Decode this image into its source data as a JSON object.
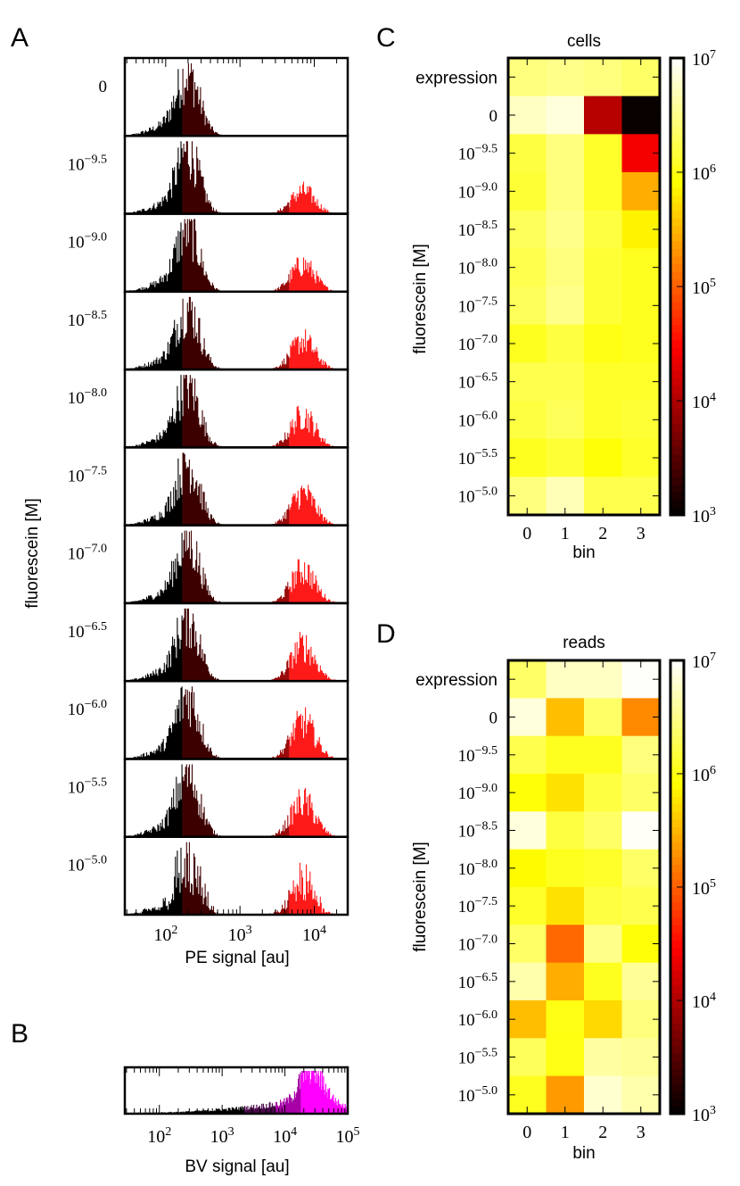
{
  "colors": {
    "pe_bins": [
      "#000000",
      "#3d0000",
      "#9a0a0a",
      "#ff1a1a"
    ],
    "bv_bins": [
      "#000000",
      "#4a0a4a",
      "#a600a6",
      "#ff00ff"
    ]
  },
  "panel_a": {
    "letter": "A",
    "ylabel": "fluorescein [M]",
    "xlabel": "PE signal [au]",
    "xticks": [
      "2",
      "3",
      "4"
    ],
    "tick_base": "10",
    "xlog_range": [
      1.45,
      4.45
    ],
    "bin_edges_log": [
      2.22,
      2.98,
      3.66
    ],
    "rows": [
      {
        "label": "0",
        "sup": "",
        "mode_high": 0.0
      },
      {
        "label": "10",
        "sup": "−9.5",
        "mode_high": 0.35
      },
      {
        "label": "10",
        "sup": "−9.0",
        "mode_high": 0.42
      },
      {
        "label": "10",
        "sup": "−8.5",
        "mode_high": 0.45
      },
      {
        "label": "10",
        "sup": "−8.0",
        "mode_high": 0.5
      },
      {
        "label": "10",
        "sup": "−7.5",
        "mode_high": 0.5
      },
      {
        "label": "10",
        "sup": "−7.0",
        "mode_high": 0.52
      },
      {
        "label": "10",
        "sup": "−6.5",
        "mode_high": 0.55
      },
      {
        "label": "10",
        "sup": "−6.0",
        "mode_high": 0.58
      },
      {
        "label": "10",
        "sup": "−5.5",
        "mode_high": 0.55
      },
      {
        "label": "10",
        "sup": "−5.0",
        "mode_high": 0.6
      }
    ]
  },
  "panel_b": {
    "letter": "B",
    "xlabel": "BV signal [au]",
    "xticks": [
      "2",
      "3",
      "4",
      "5"
    ],
    "tick_base": "10",
    "xlog_range": [
      1.45,
      5.0
    ],
    "bin_edges_log": [
      3.35,
      3.85,
      4.25
    ]
  },
  "chart_data": [
    {
      "type": "heatmap",
      "panel": "C",
      "title": "cells",
      "xlabel": "bin",
      "ylabel": "fluorescein [M]",
      "x_categories": [
        "0",
        "1",
        "2",
        "3"
      ],
      "y_categories": [
        "expression",
        "0",
        "10^-9.5",
        "10^-9.0",
        "10^-8.5",
        "10^-8.0",
        "10^-7.5",
        "10^-7.0",
        "10^-6.5",
        "10^-6.0",
        "10^-5.5",
        "10^-5.0"
      ],
      "y_labels": [
        {
          "base": "expression",
          "sup": ""
        },
        {
          "base": "0",
          "sup": ""
        },
        {
          "base": "10",
          "sup": "−9.5"
        },
        {
          "base": "10",
          "sup": "−9.0"
        },
        {
          "base": "10",
          "sup": "−8.5"
        },
        {
          "base": "10",
          "sup": "−8.0"
        },
        {
          "base": "10",
          "sup": "−7.5"
        },
        {
          "base": "10",
          "sup": "−7.0"
        },
        {
          "base": "10",
          "sup": "−6.5"
        },
        {
          "base": "10",
          "sup": "−6.0"
        },
        {
          "base": "10",
          "sup": "−5.5"
        },
        {
          "base": "10",
          "sup": "−5.0"
        }
      ],
      "log10_values": [
        [
          6.45,
          6.5,
          6.45,
          6.35
        ],
        [
          6.75,
          6.85,
          4.05,
          3.05
        ],
        [
          6.2,
          6.45,
          6.1,
          4.4
        ],
        [
          6.15,
          6.45,
          6.1,
          5.45
        ],
        [
          6.3,
          6.5,
          6.2,
          5.85
        ],
        [
          6.25,
          6.45,
          6.15,
          6.05
        ],
        [
          6.3,
          6.5,
          6.15,
          6.05
        ],
        [
          6.05,
          6.2,
          6.0,
          6.05
        ],
        [
          6.25,
          6.25,
          6.1,
          6.1
        ],
        [
          6.2,
          6.3,
          6.1,
          6.15
        ],
        [
          6.05,
          6.15,
          5.95,
          6.1
        ],
        [
          6.45,
          6.7,
          6.25,
          6.25
        ]
      ],
      "colorbar": {
        "scale": "log",
        "min": 1000,
        "max": 10000000,
        "tick_exponents": [
          "3",
          "4",
          "5",
          "6",
          "7"
        ],
        "tick_base": "10"
      }
    },
    {
      "type": "heatmap",
      "panel": "D",
      "title": "reads",
      "xlabel": "bin",
      "ylabel": "fluorescein [M]",
      "x_categories": [
        "0",
        "1",
        "2",
        "3"
      ],
      "y_categories": [
        "expression",
        "0",
        "10^-9.5",
        "10^-9.0",
        "10^-8.5",
        "10^-8.0",
        "10^-7.5",
        "10^-7.0",
        "10^-6.5",
        "10^-6.0",
        "10^-5.5",
        "10^-5.0"
      ],
      "y_labels": [
        {
          "base": "expression",
          "sup": ""
        },
        {
          "base": "0",
          "sup": ""
        },
        {
          "base": "10",
          "sup": "−9.5"
        },
        {
          "base": "10",
          "sup": "−9.0"
        },
        {
          "base": "10",
          "sup": "−8.5"
        },
        {
          "base": "10",
          "sup": "−8.0"
        },
        {
          "base": "10",
          "sup": "−7.5"
        },
        {
          "base": "10",
          "sup": "−7.0"
        },
        {
          "base": "10",
          "sup": "−6.5"
        },
        {
          "base": "10",
          "sup": "−6.0"
        },
        {
          "base": "10",
          "sup": "−5.5"
        },
        {
          "base": "10",
          "sup": "−5.0"
        }
      ],
      "log10_values": [
        [
          6.35,
          6.75,
          6.75,
          6.98
        ],
        [
          6.85,
          5.55,
          6.35,
          5.25
        ],
        [
          6.25,
          6.05,
          6.05,
          6.45
        ],
        [
          5.95,
          5.75,
          6.2,
          6.35
        ],
        [
          6.85,
          6.2,
          6.35,
          6.97
        ],
        [
          5.9,
          6.05,
          6.1,
          6.35
        ],
        [
          6.1,
          5.75,
          6.2,
          6.25
        ],
        [
          6.35,
          5.05,
          6.5,
          5.95
        ],
        [
          6.65,
          5.45,
          6.05,
          6.55
        ],
        [
          5.55,
          6.0,
          5.7,
          6.45
        ],
        [
          6.3,
          6.0,
          6.6,
          6.55
        ],
        [
          6.05,
          5.35,
          6.8,
          6.65
        ]
      ],
      "colorbar": {
        "scale": "log",
        "min": 1000,
        "max": 10000000,
        "tick_exponents": [
          "3",
          "4",
          "5",
          "6",
          "7"
        ],
        "tick_base": "10"
      }
    }
  ]
}
